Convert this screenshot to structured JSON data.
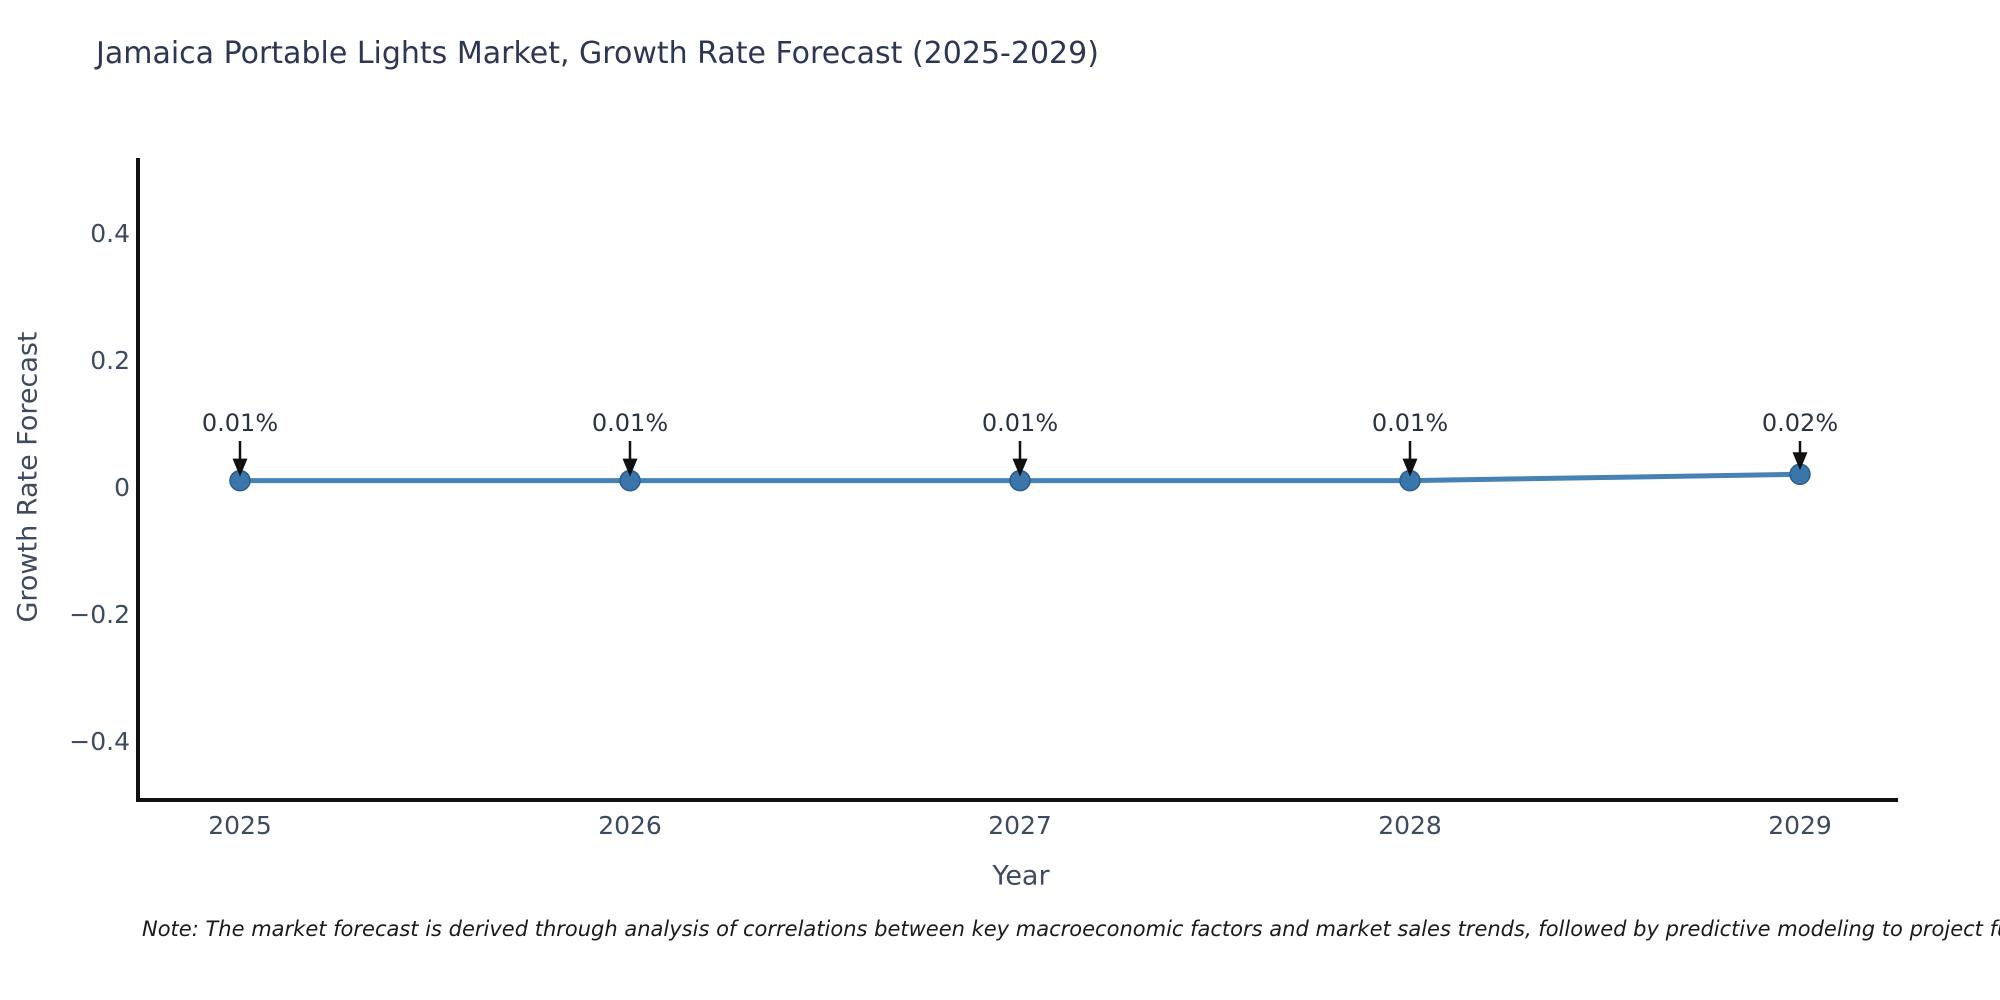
{
  "title": "Jamaica Portable Lights Market, Growth Rate Forecast (2025-2029)",
  "note": "Note: The market forecast is derived through analysis of correlations between key macroeconomic factors and market sales trends, followed by predictive modeling to project future sa",
  "chart_data": {
    "type": "line",
    "title": "Jamaica Portable Lights Market, Growth Rate Forecast (2025-2029)",
    "xlabel": "Year",
    "ylabel": "Growth Rate Forecast",
    "x": [
      2025,
      2026,
      2027,
      2028,
      2029
    ],
    "series": [
      {
        "name": "Growth Rate Forecast",
        "values": [
          0.01,
          0.01,
          0.01,
          0.01,
          0.02
        ]
      }
    ],
    "point_labels": [
      "0.01%",
      "0.01%",
      "0.01%",
      "0.01%",
      "0.02%"
    ],
    "yticks": [
      0.4,
      0.2,
      0,
      -0.2,
      -0.4
    ],
    "ytick_labels": [
      "0.4",
      "0.2",
      "0",
      "−0.2",
      "−0.4"
    ],
    "ylim": [
      -0.5,
      0.52
    ],
    "grid": false,
    "legend_position": "none",
    "annotations_have_arrows": true,
    "line_color": "#4682b4",
    "marker_color": "#3a76ab",
    "marker_edge_color": "#2b5d88",
    "axis_color": "#111111",
    "annotation_arrow_color": "#111111",
    "tick_color": "#3d4a5f",
    "title_color": "#2d3753"
  }
}
